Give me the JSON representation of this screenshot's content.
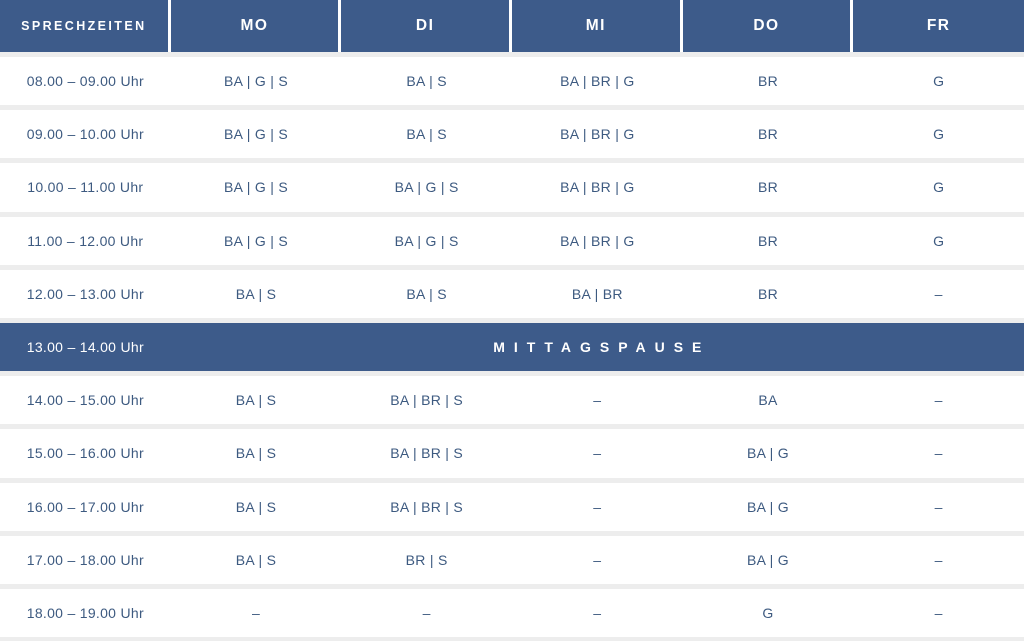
{
  "colors": {
    "header_bg": "#3d5b8a",
    "text": "#3d5a80",
    "row_bg": "#ffffff",
    "gap": "#ededed"
  },
  "table": {
    "columns": [
      "SPRECHZEITEN",
      "MO",
      "DI",
      "MI",
      "DO",
      "FR"
    ],
    "rows": [
      {
        "time": "08.00 – 09.00 Uhr",
        "cells": [
          "BA | G | S",
          "BA | S",
          "BA | BR | G",
          "BR",
          "G"
        ]
      },
      {
        "time": "09.00 – 10.00 Uhr",
        "cells": [
          "BA | G | S",
          "BA | S",
          "BA | BR | G",
          "BR",
          "G"
        ]
      },
      {
        "time": "10.00 – 11.00 Uhr",
        "cells": [
          "BA | G | S",
          "BA | G | S",
          "BA | BR | G",
          "BR",
          "G"
        ]
      },
      {
        "time": "11.00 – 12.00 Uhr",
        "cells": [
          "BA | G | S",
          "BA | G | S",
          "BA | BR | G",
          "BR",
          "G"
        ]
      },
      {
        "time": "12.00 – 13.00 Uhr",
        "cells": [
          "BA | S",
          "BA | S",
          "BA | BR",
          "BR",
          "–"
        ]
      },
      {
        "time": "13.00 – 14.00 Uhr",
        "type": "break",
        "label": "MITTAGSPAUSE"
      },
      {
        "time": "14.00 – 15.00 Uhr",
        "cells": [
          "BA | S",
          "BA | BR | S",
          "–",
          "BA",
          "–"
        ]
      },
      {
        "time": "15.00 – 16.00 Uhr",
        "cells": [
          "BA | S",
          "BA | BR | S",
          "–",
          "BA | G",
          "–"
        ]
      },
      {
        "time": "16.00 – 17.00 Uhr",
        "cells": [
          "BA | S",
          "BA | BR | S",
          "–",
          "BA | G",
          "–"
        ]
      },
      {
        "time": "17.00 – 18.00 Uhr",
        "cells": [
          "BA | S",
          "BR | S",
          "–",
          "BA | G",
          "–"
        ]
      },
      {
        "time": "18.00 – 19.00 Uhr",
        "cells": [
          "–",
          "–",
          "–",
          "G",
          "–"
        ]
      }
    ]
  }
}
